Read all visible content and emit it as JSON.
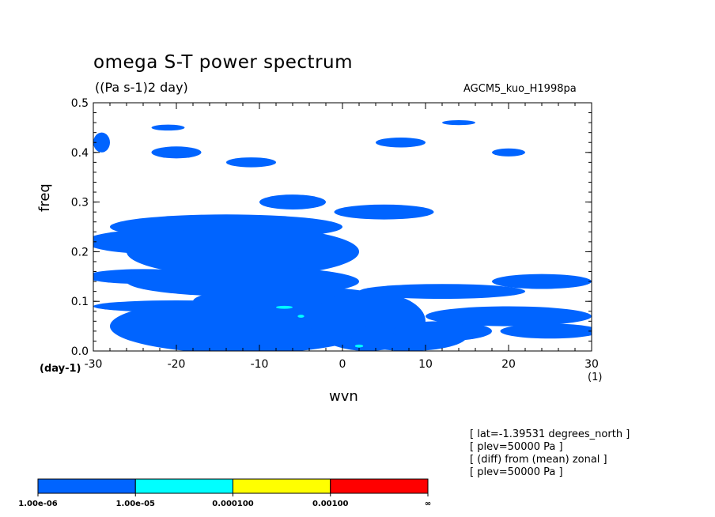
{
  "chart_data": {
    "type": "heatmap",
    "title": "omega S-T power spectrum",
    "units": "((Pa s-1)2 day)",
    "model_label": "AGCM5_kuo_H1998pa",
    "xlabel": "wvn",
    "ylabel": "freq",
    "x_unit_label": "(1)",
    "y_unit_label": "(day-1)",
    "xlim": [
      -30,
      30
    ],
    "ylim": [
      0.0,
      0.5
    ],
    "x_ticks": [
      "-30",
      "-20",
      "-10",
      "0",
      "10",
      "20",
      "30"
    ],
    "y_ticks": [
      "0.0",
      "0.1",
      "0.2",
      "0.3",
      "0.4",
      "0.5"
    ],
    "info_lines": [
      "[ lat=-1.39531 degrees_north ]",
      "[ plev=50000 Pa ]",
      "[ (diff) from (mean) zonal ]",
      "[ plev=50000 Pa ]"
    ],
    "colorbar": {
      "colors": [
        "#0064ff",
        "#00ffff",
        "#ffff00",
        "#ff0000"
      ],
      "labels": [
        "1.00e-06",
        "1.00e-05",
        "0.000100",
        "0.00100",
        "∞"
      ]
    },
    "contours": [
      {
        "level": 1,
        "regions": [
          {
            "wvn": -14,
            "freq": 0.25,
            "rw": 14,
            "rf": 0.025
          },
          {
            "wvn": -22,
            "freq": 0.22,
            "rw": 9,
            "rf": 0.025
          },
          {
            "wvn": -12,
            "freq": 0.2,
            "rw": 14,
            "rf": 0.05
          },
          {
            "wvn": -24,
            "freq": 0.15,
            "rw": 7,
            "rf": 0.015
          },
          {
            "wvn": -12,
            "freq": 0.14,
            "rw": 14,
            "rf": 0.03
          },
          {
            "wvn": -6,
            "freq": 0.1,
            "rw": 12,
            "rf": 0.03
          },
          {
            "wvn": -12,
            "freq": 0.05,
            "rw": 16,
            "rf": 0.055
          },
          {
            "wvn": -20,
            "freq": 0.09,
            "rw": 10,
            "rf": 0.012
          },
          {
            "wvn": 3,
            "freq": 0.06,
            "rw": 7,
            "rf": 0.06
          },
          {
            "wvn": 8,
            "freq": 0.03,
            "rw": 7,
            "rf": 0.03
          },
          {
            "wvn": 12,
            "freq": 0.04,
            "rw": 6,
            "rf": 0.02
          },
          {
            "wvn": 20,
            "freq": 0.07,
            "rw": 10,
            "rf": 0.02
          },
          {
            "wvn": 25,
            "freq": 0.04,
            "rw": 6,
            "rf": 0.015
          },
          {
            "wvn": 12,
            "freq": 0.12,
            "rw": 10,
            "rf": 0.015
          },
          {
            "wvn": 5,
            "freq": 0.28,
            "rw": 6,
            "rf": 0.015
          },
          {
            "wvn": -6,
            "freq": 0.3,
            "rw": 4,
            "rf": 0.015
          },
          {
            "wvn": -20,
            "freq": 0.4,
            "rw": 3,
            "rf": 0.012
          },
          {
            "wvn": -11,
            "freq": 0.38,
            "rw": 3,
            "rf": 0.01
          },
          {
            "wvn": 7,
            "freq": 0.42,
            "rw": 3,
            "rf": 0.01
          },
          {
            "wvn": 20,
            "freq": 0.4,
            "rw": 2,
            "rf": 0.008
          },
          {
            "wvn": -21,
            "freq": 0.45,
            "rw": 2,
            "rf": 0.006
          },
          {
            "wvn": 14,
            "freq": 0.46,
            "rw": 2,
            "rf": 0.005
          },
          {
            "wvn": 24,
            "freq": 0.14,
            "rw": 6,
            "rf": 0.015
          },
          {
            "wvn": -29,
            "freq": 0.42,
            "rw": 1,
            "rf": 0.02
          }
        ]
      },
      {
        "level": 2,
        "regions": [
          {
            "wvn": -7,
            "freq": 0.088,
            "rw": 1,
            "rf": 0.003
          },
          {
            "wvn": 2,
            "freq": 0.01,
            "rw": 0.5,
            "rf": 0.003
          },
          {
            "wvn": -5,
            "freq": 0.07,
            "rw": 0.4,
            "rf": 0.003
          }
        ]
      }
    ]
  }
}
